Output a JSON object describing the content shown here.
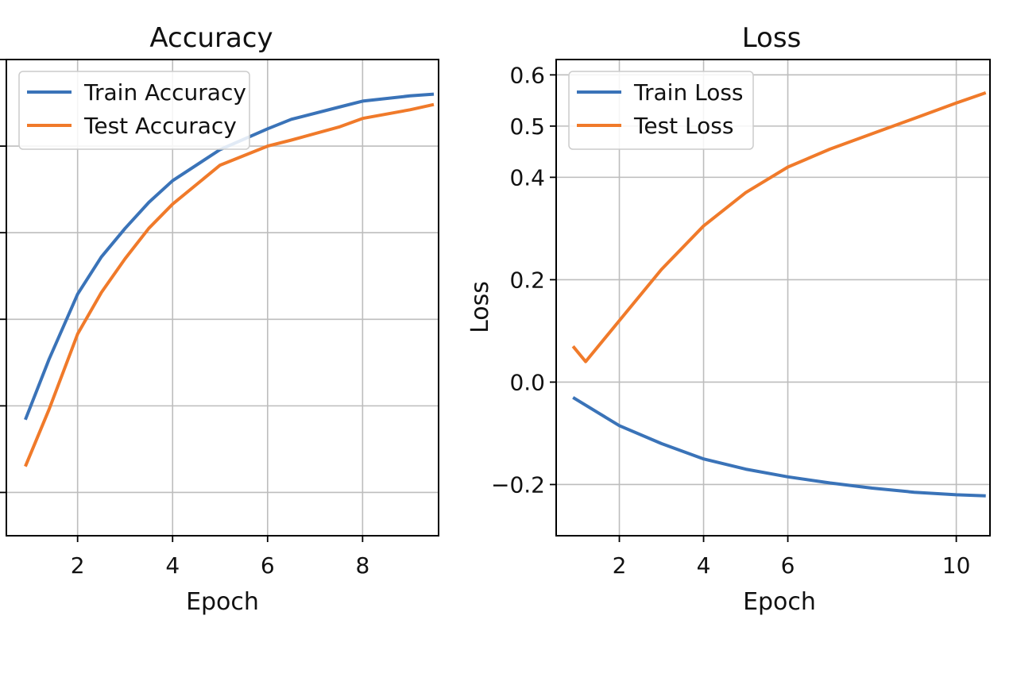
{
  "colors": {
    "train": "#3a73b8",
    "test": "#f07a2a"
  },
  "chart_data": [
    {
      "type": "line",
      "title": "Accuracy",
      "xlabel": "Epoch",
      "ylabel": "",
      "xlim": [
        0.5,
        9.6
      ],
      "ylim": [
        0.35,
        0.9
      ],
      "xticks": [
        2,
        4,
        6,
        8
      ],
      "yticks": [
        0.4,
        0.5,
        0.6,
        0.7,
        0.8,
        0.9
      ],
      "ytick_labels_visible": false,
      "grid": true,
      "legend": "top-left",
      "series": [
        {
          "name": "Train Accuracy",
          "color_key": "train",
          "x": [
            0.9,
            1.4,
            2.0,
            2.5,
            3.0,
            3.5,
            4.0,
            5.0,
            6.0,
            6.5,
            7.5,
            8.0,
            9.0,
            9.5
          ],
          "y": [
            0.484,
            0.554,
            0.629,
            0.672,
            0.705,
            0.735,
            0.76,
            0.796,
            0.82,
            0.831,
            0.845,
            0.852,
            0.858,
            0.86
          ]
        },
        {
          "name": "Test Accuracy",
          "color_key": "test",
          "x": [
            0.9,
            1.4,
            2.0,
            2.5,
            3.0,
            3.5,
            4.0,
            5.0,
            6.0,
            6.5,
            7.5,
            8.0,
            9.0,
            9.5
          ],
          "y": [
            0.43,
            0.496,
            0.583,
            0.631,
            0.67,
            0.705,
            0.733,
            0.778,
            0.8,
            0.807,
            0.822,
            0.832,
            0.842,
            0.848
          ]
        }
      ]
    },
    {
      "type": "line",
      "title": "Loss",
      "xlabel": "Epoch",
      "ylabel": "Loss",
      "xlim": [
        0.5,
        10.8
      ],
      "ylim": [
        -0.3,
        0.63
      ],
      "xticks": [
        2,
        4,
        6,
        10
      ],
      "yticks": [
        -0.2,
        0.0,
        0.2,
        0.4,
        0.5,
        0.6
      ],
      "ytick_labels": [
        "−0.2",
        "0.0",
        "0.2",
        "0.4",
        "0.5",
        "0.6"
      ],
      "grid": true,
      "legend": "top-left",
      "series": [
        {
          "name": "Train Loss",
          "color_key": "train",
          "x": [
            0.9,
            1.5,
            2.0,
            3.0,
            4.0,
            5.0,
            6.0,
            7.0,
            8.0,
            9.0,
            10.0,
            10.7
          ],
          "y": [
            -0.03,
            -0.06,
            -0.085,
            -0.12,
            -0.15,
            -0.17,
            -0.185,
            -0.197,
            -0.207,
            -0.215,
            -0.22,
            -0.222
          ]
        },
        {
          "name": "Test Loss",
          "color_key": "test",
          "x": [
            0.9,
            1.2,
            2.0,
            3.0,
            4.0,
            5.0,
            6.0,
            7.0,
            8.0,
            9.0,
            10.0,
            10.7
          ],
          "y": [
            0.07,
            0.04,
            0.12,
            0.22,
            0.305,
            0.37,
            0.42,
            0.455,
            0.485,
            0.515,
            0.545,
            0.565
          ]
        }
      ]
    }
  ]
}
